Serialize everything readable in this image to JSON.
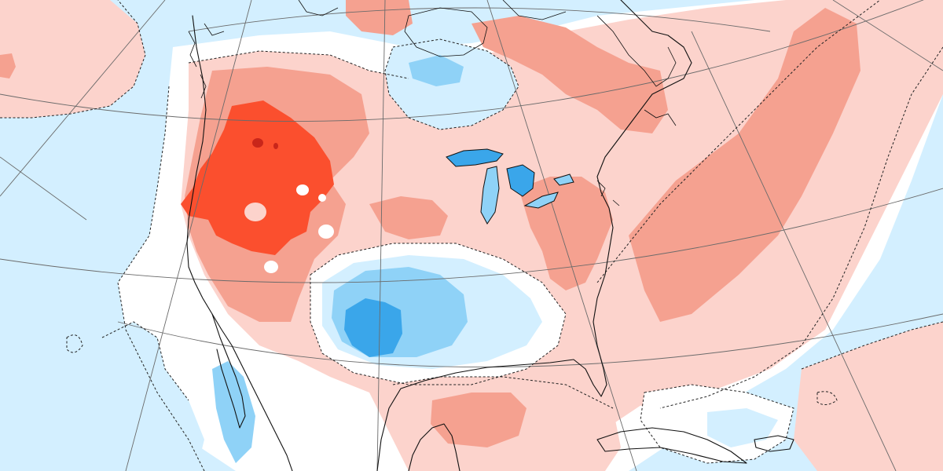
{
  "map": {
    "projection": "polar-stereographic",
    "field": "anomaly",
    "colors": {
      "strong_negative": "#3aa6ea",
      "moderate_negative": "#8fd2f7",
      "weak_negative": "#d3efff",
      "neutral": "#ffffff",
      "weak_positive": "#fcd3cc",
      "moderate_positive": "#f5a190",
      "strong_positive": "#fb4f2e",
      "extreme_positive": "#c9261a",
      "contour_line": "#222222",
      "coastline": "#111111",
      "graticule": "#6a6a6a"
    },
    "features": [
      "warm-anomaly-western-us",
      "warm-core-pacific-northwest",
      "cold-anomaly-southern-plains",
      "warm-anomaly-western-atlantic",
      "warm-anomaly-gulf-of-mexico",
      "cold-anomaly-great-lakes",
      "cold-anomaly-eastern-pacific"
    ]
  }
}
